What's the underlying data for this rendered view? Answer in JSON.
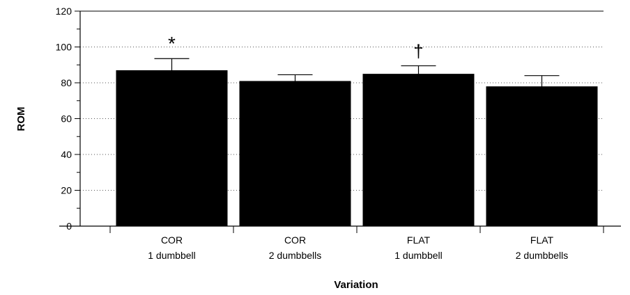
{
  "chart_data": {
    "type": "bar",
    "title": "",
    "xlabel": "Variation",
    "ylabel": "ROM",
    "ylim": [
      0,
      120
    ],
    "yticks": [
      0,
      20,
      40,
      60,
      80,
      100,
      120
    ],
    "grid": "horizontal dotted at major ticks",
    "legend": "none",
    "categories": [
      {
        "line1": "COR",
        "line2": "1 dumbbell"
      },
      {
        "line1": "COR",
        "line2": "2 dumbbells"
      },
      {
        "line1": "FLAT",
        "line2": "1 dumbbell"
      },
      {
        "line1": "FLAT",
        "line2": "2 dumbbells"
      }
    ],
    "values": [
      87,
      81,
      85,
      78
    ],
    "error_upper": [
      93.5,
      84.5,
      89.5,
      84
    ],
    "annotations": [
      "*",
      "",
      "†",
      ""
    ],
    "bar_color": "#000000"
  }
}
